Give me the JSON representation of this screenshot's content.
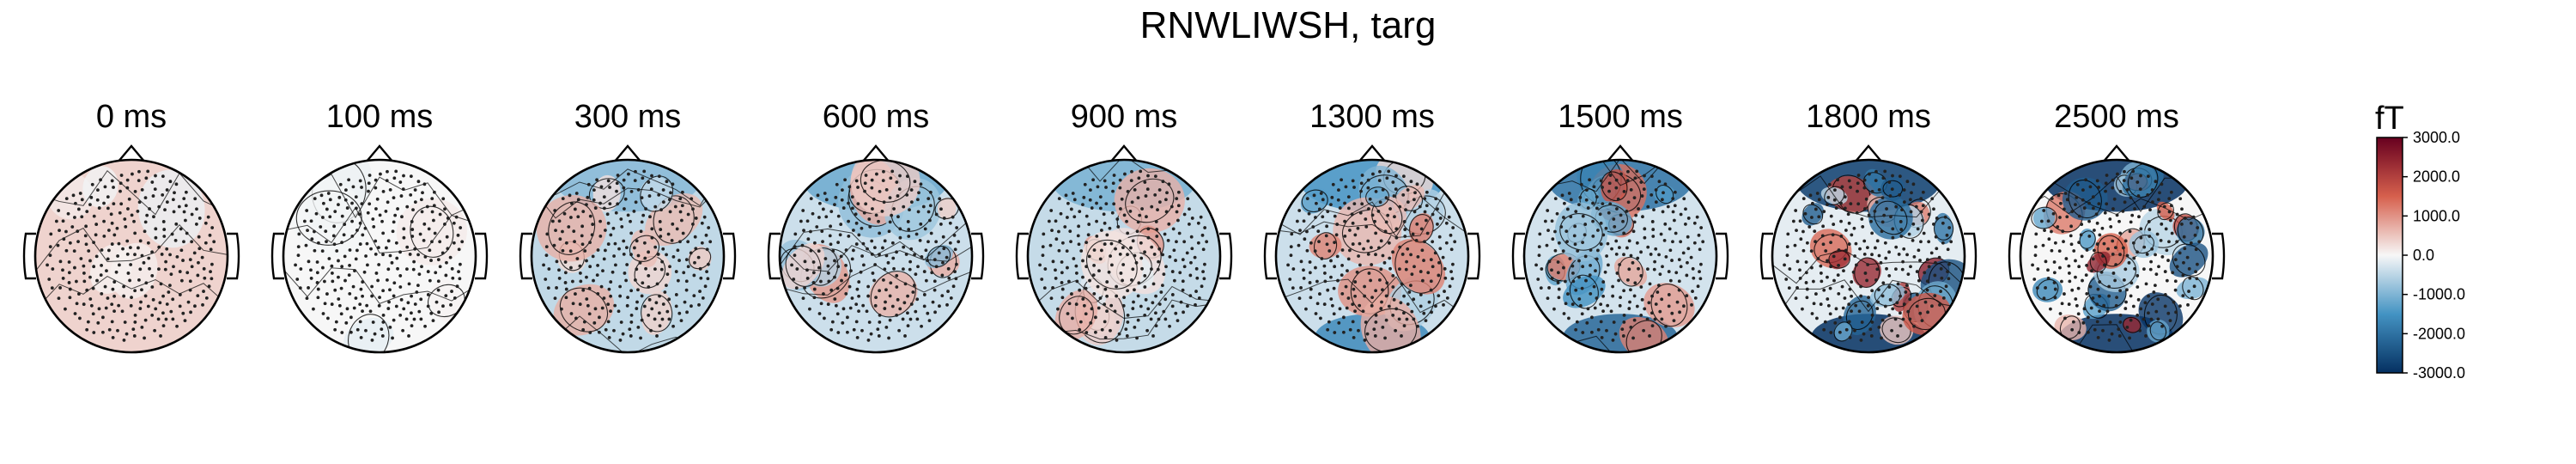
{
  "figure": {
    "title": "RNWLIWSH, targ"
  },
  "colors": {
    "positive_max": "#67001f",
    "positive_mid": "#d6604d",
    "zero": "#f7f7f7",
    "negative_mid": "#4393c3",
    "negative_max": "#053061",
    "sensor": "#222222",
    "contour": "#000000"
  },
  "chart_data": {
    "type": "heatmap",
    "title": "RNWLIWSH, targ",
    "subtype": "topographic-map-series",
    "panels": [
      {
        "label": "0 ms",
        "intensity": 0.05,
        "bias": 0.12
      },
      {
        "label": "100 ms",
        "intensity": 0.06,
        "bias": 0.0
      },
      {
        "label": "300 ms",
        "intensity": 0.28,
        "bias": -0.15
      },
      {
        "label": "600 ms",
        "intensity": 0.35,
        "bias": -0.12
      },
      {
        "label": "900 ms",
        "intensity": 0.32,
        "bias": -0.14
      },
      {
        "label": "1300 ms",
        "intensity": 0.45,
        "bias": -0.12
      },
      {
        "label": "1500 ms",
        "intensity": 0.6,
        "bias": -0.1
      },
      {
        "label": "1800 ms",
        "intensity": 0.85,
        "bias": -0.05
      },
      {
        "label": "2500 ms",
        "intensity": 1.0,
        "bias": 0.0
      }
    ],
    "colorbar": {
      "unit": "fT",
      "vmin": -3000,
      "vmax": 3000,
      "ticks": [
        "3000.0",
        "2000.0",
        "1000.0",
        "0.0",
        "-1000.0",
        "-2000.0",
        "-3000.0"
      ],
      "colormap": "RdBu_r"
    }
  }
}
